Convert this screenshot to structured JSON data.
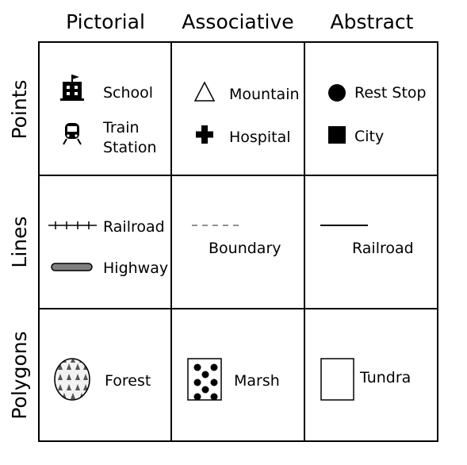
{
  "columns": [
    "Pictorial",
    "Associative",
    "Abstract"
  ],
  "rows": [
    "Points",
    "Lines",
    "Polygons"
  ],
  "cells": {
    "points_pictorial": {
      "school": "School",
      "train_line1": "Train",
      "train_line2": "Station"
    },
    "points_associative": {
      "mountain": "Mountain",
      "hospital": "Hospital"
    },
    "points_abstract": {
      "rest_stop": "Rest Stop",
      "city": "City"
    },
    "lines_pictorial": {
      "railroad": "Railroad",
      "highway": "Highway"
    },
    "lines_associative": {
      "boundary": "Boundary"
    },
    "lines_abstract": {
      "railroad": "Railroad"
    },
    "polygons_pictorial": {
      "forest": "Forest"
    },
    "polygons_associative": {
      "marsh": "Marsh"
    },
    "polygons_abstract": {
      "tundra": "Tundra"
    }
  },
  "colors": {
    "line": "#000000",
    "highway_fill": "#808080",
    "boundary_dash": "#909090",
    "forest_fill": "#f2f2f2"
  }
}
